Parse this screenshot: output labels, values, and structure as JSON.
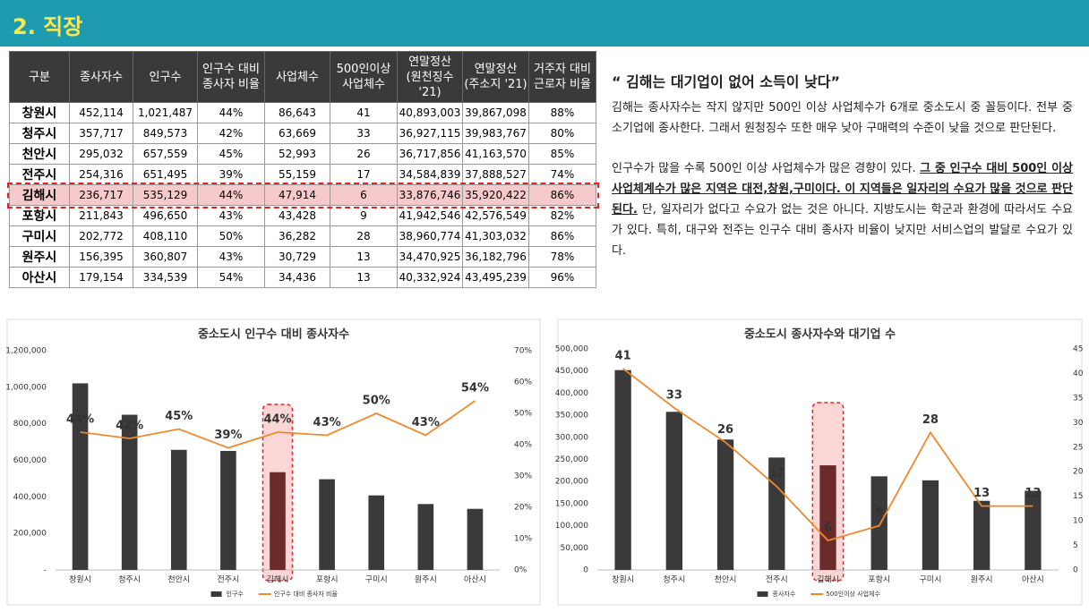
{
  "header": {
    "title": "2. 직장"
  },
  "table": {
    "header": [
      "구분",
      "종사자수",
      "인구수",
      "인구수 대비\n종사자 비율",
      "사업체수",
      "500인이상\n사업체수",
      "연말정산\n(원천징수 '21)",
      "연말정산\n(주소지 '21)",
      "거주자 대비\n근로자 비율"
    ],
    "rows": [
      [
        "창원시",
        "452,114",
        "1,021,487",
        "44%",
        "86,643",
        "41",
        "40,893,003",
        "39,867,098",
        "88%"
      ],
      [
        "청주시",
        "357,717",
        "849,573",
        "42%",
        "63,669",
        "33",
        "36,927,115",
        "39,983,767",
        "80%"
      ],
      [
        "천안시",
        "295,032",
        "657,559",
        "45%",
        "52,993",
        "26",
        "36,717,856",
        "41,163,570",
        "85%"
      ],
      [
        "전주시",
        "254,316",
        "651,495",
        "39%",
        "55,159",
        "17",
        "34,584,839",
        "37,888,527",
        "74%"
      ],
      [
        "김해시",
        "236,717",
        "535,129",
        "44%",
        "47,914",
        "6",
        "33,876,746",
        "35,920,422",
        "86%"
      ],
      [
        "포항시",
        "211,843",
        "496,650",
        "43%",
        "43,428",
        "9",
        "41,942,546",
        "42,576,549",
        "82%"
      ],
      [
        "구미시",
        "202,772",
        "408,110",
        "50%",
        "36,282",
        "28",
        "38,960,774",
        "41,303,032",
        "86%"
      ],
      [
        "원주시",
        "156,395",
        "360,807",
        "43%",
        "30,729",
        "13",
        "34,470,925",
        "36,182,796",
        "78%"
      ],
      [
        "아산시",
        "179,154",
        "334,539",
        "54%",
        "34,436",
        "13",
        "40,332,924",
        "43,495,239",
        "96%"
      ]
    ],
    "highlight_row": 4
  },
  "text": {
    "title": "“ 김해는 대기업이 없어 소득이 낮다”",
    "paragraphs": [
      [
        {
          "text": "김해는 종사자수는 작지 않지만 500인 이상 사업체수가 6개로 중소도시 중 꼴등이다. 전부 중소기업에 종사한다. 그래서 원청징수 또한 매우 낮아 구매력의 수준이 낮을 것으로 판단된다."
        }
      ],
      [
        {
          "text": "인구수가 많을 수록 500인 이상 사업체수가 많은 경향이 있다. "
        },
        {
          "text": "그 중 인구수 대비 500인 이상 사업체계수가 많은 지역은 대전,창원,구미이다. 이 지역들은 일자리의 수요가 많을 것으로 판단된다.",
          "emphasis": true
        },
        {
          "text": " 단, 일자리가 없다고 수요가 없는 것은 아니다. 지방도시는 학군과 환경에 따라서도 수요가 있다. 특히, 대구와 전주는 인구수 대비 종사자 비율이 낮지만 서비스업의 발달로 수요가 있다."
        }
      ]
    ]
  },
  "chart_data": [
    {
      "type": "bar",
      "title": "중소도시 인구수 대비 종사자수",
      "categories": [
        "창원시",
        "청주시",
        "천안시",
        "전주시",
        "김해시",
        "포항시",
        "구미시",
        "원주시",
        "아산시"
      ],
      "series": [
        {
          "name": "인구수",
          "type": "bar",
          "color": "#3a3a3a",
          "highlight_color": "#6b2b2b",
          "values": [
            1021487,
            849573,
            657559,
            651495,
            535129,
            496650,
            408110,
            360807,
            334539
          ]
        },
        {
          "name": "인구수 대비 종사자 비율",
          "type": "line",
          "axis": "y2",
          "color": "#f0882c",
          "values": [
            44,
            42,
            45,
            39,
            44,
            43,
            50,
            43,
            54
          ],
          "value_labels": [
            "44%",
            "42%",
            "45%",
            "39%",
            "44%",
            "43%",
            "50%",
            "43%",
            "54%"
          ]
        }
      ],
      "ylim": [
        0,
        1200000
      ],
      "yticks": [
        {
          "value": 0,
          "label": "-"
        },
        {
          "value": 200000,
          "label": "200,000"
        },
        {
          "value": 400000,
          "label": "400,000"
        },
        {
          "value": 600000,
          "label": "600,000"
        },
        {
          "value": 800000,
          "label": "800,000"
        },
        {
          "value": 1000000,
          "label": "1,000,000"
        },
        {
          "value": 1200000,
          "label": "1,200,000"
        }
      ],
      "y2lim": [
        0,
        70
      ],
      "y2ticks": [
        {
          "value": 0,
          "label": "0%"
        },
        {
          "value": 10,
          "label": "10%"
        },
        {
          "value": 20,
          "label": "20%"
        },
        {
          "value": 30,
          "label": "30%"
        },
        {
          "value": 40,
          "label": "40%"
        },
        {
          "value": 50,
          "label": "50%"
        },
        {
          "value": 60,
          "label": "60%"
        },
        {
          "value": 70,
          "label": "70%"
        }
      ],
      "highlight": 4,
      "legend": "bottom"
    },
    {
      "type": "bar",
      "title": "중소도시 종사자수와 대기업 수",
      "categories": [
        "창원시",
        "청주시",
        "천안시",
        "전주시",
        "김해시",
        "포항시",
        "구미시",
        "원주시",
        "아산시"
      ],
      "series": [
        {
          "name": "종사자수",
          "type": "bar",
          "color": "#3a3a3a",
          "highlight_color": "#6b2b2b",
          "values": [
            452114,
            357717,
            295032,
            254316,
            236717,
            211843,
            202772,
            156395,
            179154
          ]
        },
        {
          "name": "500인이상 사업체수",
          "type": "line",
          "axis": "y2",
          "color": "#f0882c",
          "values": [
            41,
            33,
            26,
            17,
            6,
            9,
            28,
            13,
            13
          ]
        }
      ],
      "ylim": [
        0,
        500000
      ],
      "yticks": [
        0,
        {
          "value": 50000,
          "label": "50,000"
        },
        {
          "value": 100000,
          "label": "100,000"
        },
        {
          "value": 150000,
          "label": "150,000"
        },
        {
          "value": 200000,
          "label": "200,000"
        },
        {
          "value": 250000,
          "label": "250,000"
        },
        {
          "value": 300000,
          "label": "300,000"
        },
        {
          "value": 350000,
          "label": "350,000"
        },
        {
          "value": 400000,
          "label": "400,000"
        },
        {
          "value": 450000,
          "label": "450,000"
        },
        {
          "value": 500000,
          "label": "500,000"
        }
      ],
      "y2lim": [
        0,
        45
      ],
      "y2ticks": [
        0,
        5,
        10,
        15,
        20,
        25,
        30,
        35,
        40,
        45
      ],
      "highlight": 4,
      "legend": "bottom"
    }
  ]
}
